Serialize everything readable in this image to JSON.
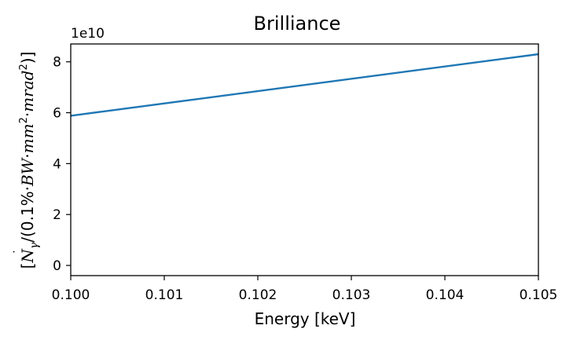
{
  "chart_data": {
    "type": "line",
    "title": "Brilliance",
    "xlabel": "Energy [keV]",
    "ylabel": "[Ṅγ/(0.1%·BW·mm²·mrad²)]",
    "ylabel_parts": {
      "open": "[",
      "n": "N",
      "n_dot": "˙",
      "gamma": "γ",
      "mid1": "/(0.1%·",
      "bw": "BW",
      "dot1": "·",
      "mm": "mm",
      "sq1": "2",
      "dot2": "·",
      "mrad": "mrad",
      "sq2": "2",
      "close": ")]"
    },
    "y_offset_label": "1e10",
    "xlim": [
      0.1,
      0.105
    ],
    "ylim": [
      -0.4,
      8.7
    ],
    "x_ticks": [
      0.1,
      0.101,
      0.102,
      0.103,
      0.104,
      0.105
    ],
    "x_tick_labels": [
      "0.100",
      "0.101",
      "0.102",
      "0.103",
      "0.104",
      "0.105"
    ],
    "y_ticks": [
      0,
      2,
      4,
      6,
      8
    ],
    "y_tick_labels": [
      "0",
      "2",
      "4",
      "6",
      "8"
    ],
    "grid": false,
    "series": [
      {
        "color": "#1f77b4",
        "x": [
          0.1,
          0.105
        ],
        "y": [
          5.88,
          8.3
        ]
      }
    ]
  }
}
